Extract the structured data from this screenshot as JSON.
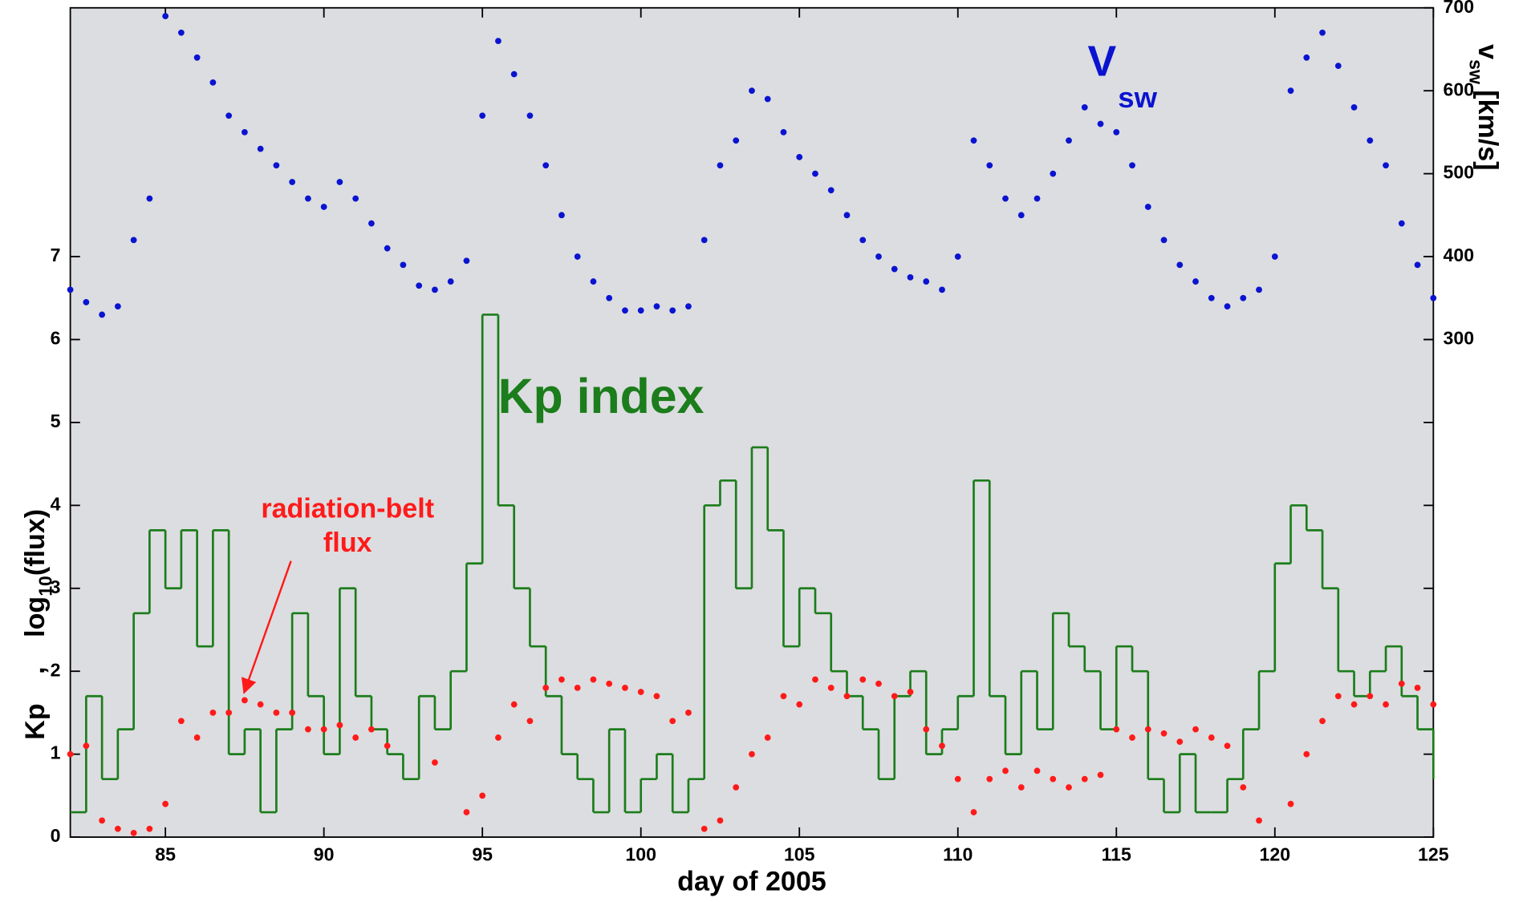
{
  "chart_data": {
    "type": "scatter",
    "xlabel": "day of 2005",
    "ylabel": [
      "Kp",
      ",",
      "log",
      "10",
      "(flux)"
    ],
    "y2label": [
      "v",
      "sw",
      "[km/s]"
    ],
    "annotations": {
      "kp": "Kp index",
      "vsw": [
        "V",
        "sw"
      ],
      "flux": [
        "radiation-belt",
        "flux"
      ]
    },
    "xlim": [
      82,
      125
    ],
    "xticks": [
      85,
      90,
      95,
      100,
      105,
      110,
      115,
      120,
      125
    ],
    "ylim": [
      0,
      10
    ],
    "yticks": [
      0,
      1,
      2,
      3,
      4,
      5,
      6,
      7
    ],
    "y2lim": [
      -300,
      700
    ],
    "y2ticks": [
      300,
      400,
      500,
      600,
      700
    ],
    "x": [
      82,
      82.5,
      83,
      83.5,
      84,
      84.5,
      85,
      85.5,
      86,
      86.5,
      87,
      87.5,
      88,
      88.5,
      89,
      89.5,
      90,
      90.5,
      91,
      91.5,
      92,
      92.5,
      93,
      93.5,
      94,
      94.5,
      95,
      95.5,
      96,
      96.5,
      97,
      97.5,
      98,
      98.5,
      99,
      99.5,
      100,
      100.5,
      101,
      101.5,
      102,
      102.5,
      103,
      103.5,
      104,
      104.5,
      105,
      105.5,
      106,
      106.5,
      107,
      107.5,
      108,
      108.5,
      109,
      109.5,
      110,
      110.5,
      111,
      111.5,
      112,
      112.5,
      113,
      113.5,
      114,
      114.5,
      115,
      115.5,
      116,
      116.5,
      117,
      117.5,
      118,
      118.5,
      119,
      119.5,
      120,
      120.5,
      121,
      121.5,
      122,
      122.5,
      123,
      123.5,
      124,
      124.5,
      125
    ],
    "series": [
      {
        "name": "V sw",
        "type": "scatter",
        "axis": "y2",
        "color": "#0a14d0",
        "values": [
          360,
          345,
          330,
          340,
          420,
          470,
          690,
          670,
          640,
          610,
          570,
          550,
          530,
          510,
          490,
          470,
          460,
          490,
          470,
          440,
          410,
          390,
          365,
          360,
          370,
          395,
          570,
          660,
          620,
          570,
          510,
          450,
          400,
          370,
          350,
          335,
          335,
          340,
          335,
          340,
          420,
          510,
          540,
          600,
          590,
          550,
          520,
          500,
          480,
          450,
          420,
          400,
          385,
          375,
          370,
          360,
          400,
          540,
          510,
          470,
          450,
          470,
          500,
          540,
          580,
          560,
          550,
          510,
          460,
          420,
          390,
          370,
          350,
          340,
          350,
          360,
          400,
          600,
          640,
          670,
          630,
          580,
          540,
          510,
          440,
          390,
          350
        ]
      },
      {
        "name": "Kp index",
        "type": "step",
        "color": "#1b7d1b",
        "values": [
          0.3,
          1.7,
          0.7,
          1.3,
          2.7,
          3.7,
          3,
          3.7,
          2.3,
          3.7,
          1,
          1.3,
          0.3,
          1.3,
          2.7,
          1.7,
          1,
          3,
          1.7,
          1.3,
          1,
          0.7,
          1.7,
          1.3,
          2,
          3.3,
          6.3,
          4,
          3,
          2.3,
          1.7,
          1,
          0.7,
          0.3,
          1.3,
          0.3,
          0.7,
          1,
          0.3,
          0.7,
          4,
          4.3,
          3,
          4.7,
          3.7,
          2.3,
          3,
          2.7,
          2,
          1.7,
          1.3,
          0.7,
          1.7,
          2,
          1,
          1.3,
          1.7,
          4.3,
          1.7,
          1,
          2,
          1.3,
          2.7,
          2.3,
          2,
          1.3,
          2.3,
          2,
          0.7,
          0.3,
          1,
          0.3,
          0.3,
          0.7,
          1.3,
          2,
          3.3,
          4,
          3.7,
          3,
          2,
          1.7,
          2,
          2.3,
          1.7,
          1.3,
          0.7
        ]
      },
      {
        "name": "radiation-belt flux",
        "type": "scatter",
        "color": "#ff1a1a",
        "values": [
          1.0,
          1.1,
          0.2,
          0.1,
          0.05,
          0.1,
          0.4,
          1.4,
          1.2,
          1.5,
          1.5,
          1.65,
          1.6,
          1.5,
          1.5,
          1.3,
          1.3,
          1.35,
          1.2,
          1.3,
          1.1,
          null,
          null,
          0.9,
          null,
          0.3,
          0.5,
          1.2,
          1.6,
          1.4,
          1.8,
          1.9,
          1.8,
          1.9,
          1.85,
          1.8,
          1.75,
          1.7,
          1.4,
          1.5,
          0.1,
          0.2,
          0.6,
          1.0,
          1.2,
          1.7,
          1.6,
          1.9,
          1.8,
          1.7,
          1.9,
          1.85,
          1.7,
          1.75,
          1.3,
          1.1,
          0.7,
          0.3,
          0.7,
          0.8,
          0.6,
          0.8,
          0.7,
          0.6,
          0.7,
          0.75,
          1.3,
          1.2,
          1.3,
          1.25,
          1.15,
          1.3,
          1.2,
          1.1,
          0.6,
          0.2,
          null,
          0.4,
          1.0,
          1.4,
          1.7,
          1.6,
          1.7,
          1.6,
          1.85,
          1.8,
          1.6
        ]
      }
    ]
  }
}
